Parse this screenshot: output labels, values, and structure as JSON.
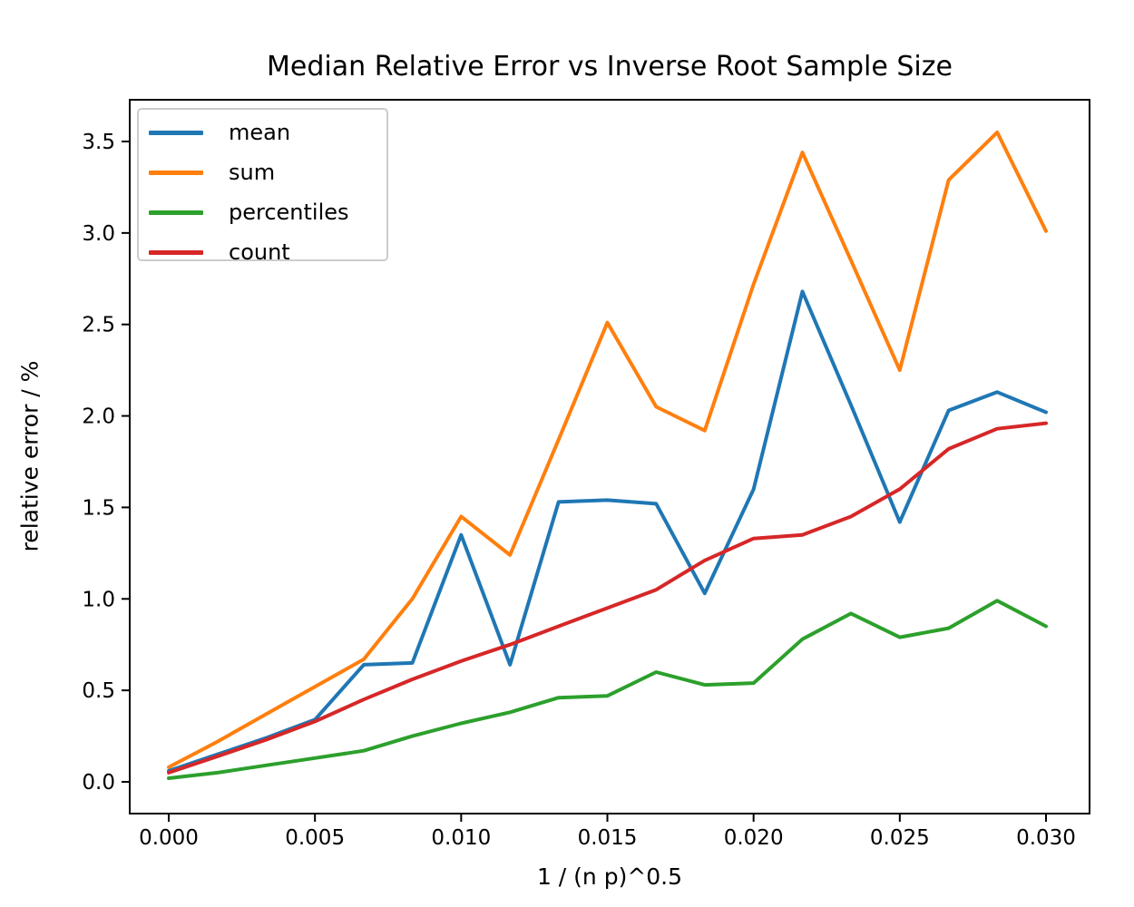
{
  "figure": {
    "background": "#ffffff",
    "text_color": "#000000",
    "spine_color": "#000000",
    "legend_border_color": "#cccccc"
  },
  "chart_data": {
    "type": "line",
    "title": "Median Relative Error vs Inverse Root Sample Size",
    "xlabel": "1 / (n p)^0.5",
    "ylabel": "relative error / %",
    "grid": false,
    "legend_position": "upper left",
    "xlim": [
      -0.0015,
      0.0315
    ],
    "ylim": [
      -0.17,
      3.73
    ],
    "xticks": {
      "values": [
        0.0,
        0.005,
        0.01,
        0.015,
        0.02,
        0.025,
        0.03
      ],
      "labels": [
        "0.000",
        "0.005",
        "0.010",
        "0.015",
        "0.020",
        "0.025",
        "0.030"
      ]
    },
    "yticks": {
      "values": [
        0.0,
        0.5,
        1.0,
        1.5,
        2.0,
        2.5,
        3.0,
        3.5
      ],
      "labels": [
        "0.0",
        "0.5",
        "1.0",
        "1.5",
        "2.0",
        "2.5",
        "3.0",
        "3.5"
      ]
    },
    "x": [
      0.0,
      0.00167,
      0.00333,
      0.005,
      0.00667,
      0.00833,
      0.01,
      0.01167,
      0.01333,
      0.015,
      0.01667,
      0.01833,
      0.02,
      0.02167,
      0.02333,
      0.025,
      0.02667,
      0.02833,
      0.03
    ],
    "series": [
      {
        "name": "mean",
        "color": "#1f77b4",
        "values": [
          0.06,
          0.15,
          0.24,
          0.34,
          0.64,
          0.65,
          1.35,
          0.64,
          1.53,
          1.54,
          1.52,
          1.03,
          1.6,
          2.68,
          2.06,
          1.42,
          2.03,
          2.13,
          2.02
        ]
      },
      {
        "name": "sum",
        "color": "#ff7f0e",
        "values": [
          0.08,
          0.22,
          0.37,
          0.52,
          0.67,
          1.0,
          1.45,
          1.24,
          1.87,
          2.51,
          2.05,
          1.92,
          2.72,
          3.44,
          2.85,
          2.25,
          3.29,
          3.55,
          3.01
        ]
      },
      {
        "name": "percentiles",
        "color": "#2ca02c",
        "values": [
          0.02,
          0.05,
          0.09,
          0.13,
          0.17,
          0.25,
          0.32,
          0.38,
          0.46,
          0.47,
          0.6,
          0.53,
          0.54,
          0.78,
          0.92,
          0.79,
          0.84,
          0.99,
          0.85
        ]
      },
      {
        "name": "count",
        "color": "#d62728",
        "values": [
          0.05,
          0.14,
          0.23,
          0.33,
          0.45,
          0.56,
          0.66,
          0.75,
          0.85,
          0.95,
          1.05,
          1.21,
          1.33,
          1.35,
          1.45,
          1.6,
          1.82,
          1.93,
          1.96
        ]
      }
    ]
  }
}
